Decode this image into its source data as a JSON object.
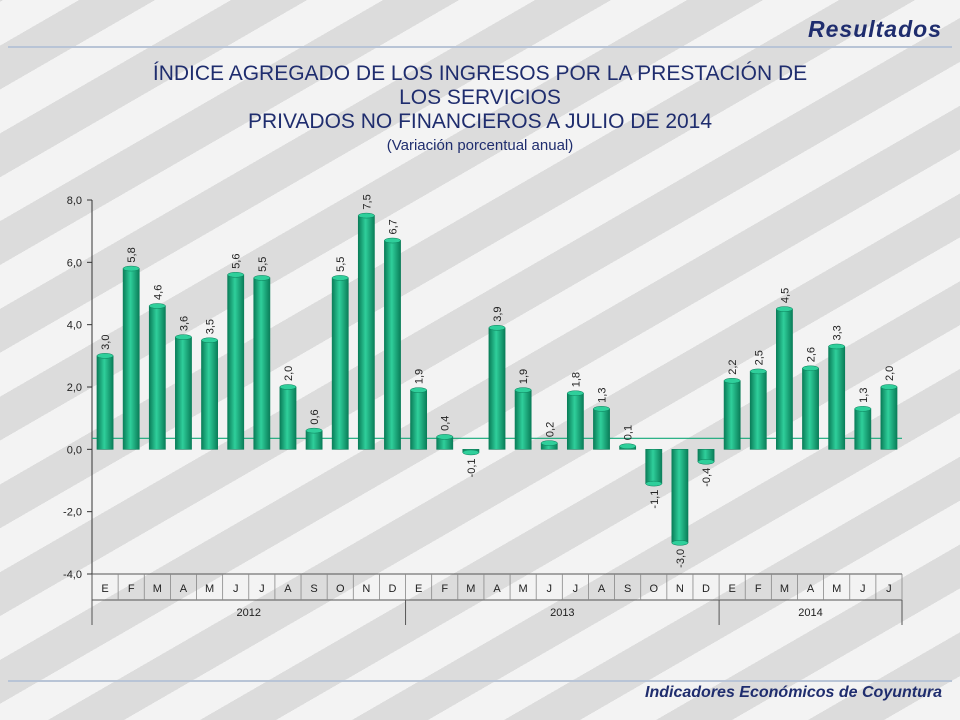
{
  "header": {
    "section_title": "Resultados"
  },
  "title": {
    "lines": [
      "ÍNDICE AGREGADO DE LOS INGRESOS POR LA PRESTACIÓN DE",
      "LOS SERVICIOS",
      "PRIVADOS NO FINANCIEROS A JULIO DE 2014"
    ],
    "subtitle": "(Variación porcentual anual)"
  },
  "footer": {
    "text": "Indicadores Económicos de Coyuntura"
  },
  "colors": {
    "bar": "#13b07f",
    "bar_dark": "#0a7e59",
    "bar_light": "#2fcf9b",
    "title": "#1f2d6e",
    "zero_line": "#13a878"
  },
  "chart_data": {
    "type": "bar",
    "categories": [
      "E",
      "F",
      "M",
      "A",
      "M",
      "J",
      "J",
      "A",
      "S",
      "O",
      "N",
      "D",
      "E",
      "F",
      "M",
      "A",
      "M",
      "J",
      "J",
      "A",
      "S",
      "O",
      "N",
      "D",
      "E",
      "F",
      "M",
      "A",
      "M",
      "J",
      "J"
    ],
    "years": [
      {
        "label": "2012",
        "count": 12
      },
      {
        "label": "2013",
        "count": 12
      },
      {
        "label": "2014",
        "count": 7
      }
    ],
    "values": [
      3.0,
      5.8,
      4.6,
      3.6,
      3.5,
      5.6,
      5.5,
      2.0,
      0.6,
      5.5,
      7.5,
      6.7,
      1.9,
      0.4,
      -0.1,
      3.9,
      1.9,
      0.2,
      1.8,
      1.3,
      0.1,
      -1.1,
      -3.0,
      -0.4,
      2.2,
      2.5,
      4.5,
      2.6,
      3.3,
      1.3,
      2.0
    ],
    "value_labels": [
      "3,0",
      "5,8",
      "4,6",
      "3,6",
      "3,5",
      "5,6",
      "5,5",
      "2,0",
      "0,6",
      "5,5",
      "7,5",
      "6,7",
      "1,9",
      "0,4",
      "-0,1",
      "3,9",
      "1,9",
      "0,2",
      "1,8",
      "1,3",
      "0,1",
      "-1,1",
      "-3,0",
      "-0,4",
      "2,2",
      "2,5",
      "4,5",
      "2,6",
      "3,3",
      "1,3",
      "2,0"
    ],
    "ylim": [
      -4.0,
      8.0
    ],
    "yticks": [
      -4.0,
      -2.0,
      0.0,
      2.0,
      4.0,
      6.0,
      8.0
    ],
    "ytick_labels": [
      "-4,0",
      "-2,0",
      "0,0",
      "2,0",
      "4,0",
      "6,0",
      "8,0"
    ],
    "grid": false,
    "legend": "none"
  }
}
